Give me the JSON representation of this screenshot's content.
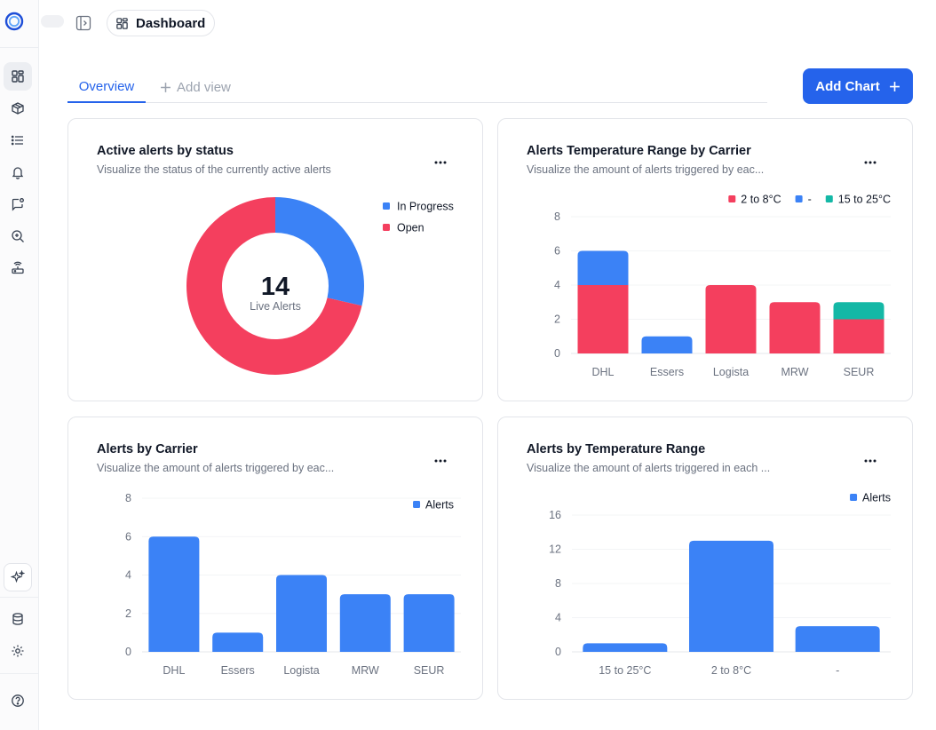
{
  "header": {
    "breadcrumb": "Dashboard"
  },
  "tabs": {
    "overview": "Overview",
    "add_view": "Add view"
  },
  "toolbar": {
    "add_chart": "Add Chart"
  },
  "colors": {
    "blue": "#3b82f6",
    "red": "#f43f5e",
    "teal": "#14b8a6",
    "primary": "#2563eb"
  },
  "sidebar": {
    "icons": [
      "dashboard-icon",
      "box-icon",
      "list-icon",
      "bell-icon",
      "message-alert-icon",
      "search-zoom-icon",
      "router-icon",
      "sparkle-ai-icon",
      "database-icon",
      "gear-icon",
      "help-icon"
    ]
  },
  "cards": [
    {
      "title": "Active alerts by status",
      "subtitle": "Visualize the status of the currently active alerts"
    },
    {
      "title": "Alerts Temperature Range by Carrier",
      "subtitle": "Visualize the amount of alerts triggered by eac..."
    },
    {
      "title": "Alerts by Carrier",
      "subtitle": "Visualize the amount of alerts triggered by eac..."
    },
    {
      "title": "Alerts by Temperature Range",
      "subtitle": "Visualize the amount of alerts triggered in each ..."
    }
  ],
  "chart_data": [
    {
      "type": "pie",
      "donut": true,
      "center_value": "14",
      "center_label": "Live Alerts",
      "legend_position": "top-right",
      "series": [
        {
          "name": "In Progress",
          "value": 4,
          "color": "#3b82f6"
        },
        {
          "name": "Open",
          "value": 10,
          "color": "#f43f5e"
        }
      ]
    },
    {
      "type": "bar",
      "stacked": true,
      "categories": [
        "DHL",
        "Essers",
        "Logista",
        "MRW",
        "SEUR"
      ],
      "ylim": [
        0,
        8
      ],
      "yticks": [
        0,
        2,
        4,
        6,
        8
      ],
      "legend_position": "top-right",
      "grid": true,
      "series": [
        {
          "name": "2 to 8°C",
          "color": "#f43f5e",
          "values": [
            4,
            0,
            4,
            3,
            2
          ]
        },
        {
          "name": "-",
          "color": "#3b82f6",
          "values": [
            2,
            1,
            0,
            0,
            0
          ]
        },
        {
          "name": "15 to 25°C",
          "color": "#14b8a6",
          "values": [
            0,
            0,
            0,
            0,
            1
          ]
        }
      ]
    },
    {
      "type": "bar",
      "categories": [
        "DHL",
        "Essers",
        "Logista",
        "MRW",
        "SEUR"
      ],
      "ylim": [
        0,
        8
      ],
      "yticks": [
        0,
        2,
        4,
        6,
        8
      ],
      "legend_position": "top-right",
      "grid": true,
      "series": [
        {
          "name": "Alerts",
          "color": "#3b82f6",
          "values": [
            6,
            1,
            4,
            3,
            3
          ]
        }
      ]
    },
    {
      "type": "bar",
      "categories": [
        "15 to 25°C",
        "2 to 8°C",
        "-"
      ],
      "ylim": [
        0,
        16
      ],
      "yticks": [
        0,
        4,
        8,
        12,
        16
      ],
      "legend_position": "top-right",
      "grid": true,
      "series": [
        {
          "name": "Alerts",
          "color": "#3b82f6",
          "values": [
            1,
            13,
            3
          ]
        }
      ]
    }
  ]
}
